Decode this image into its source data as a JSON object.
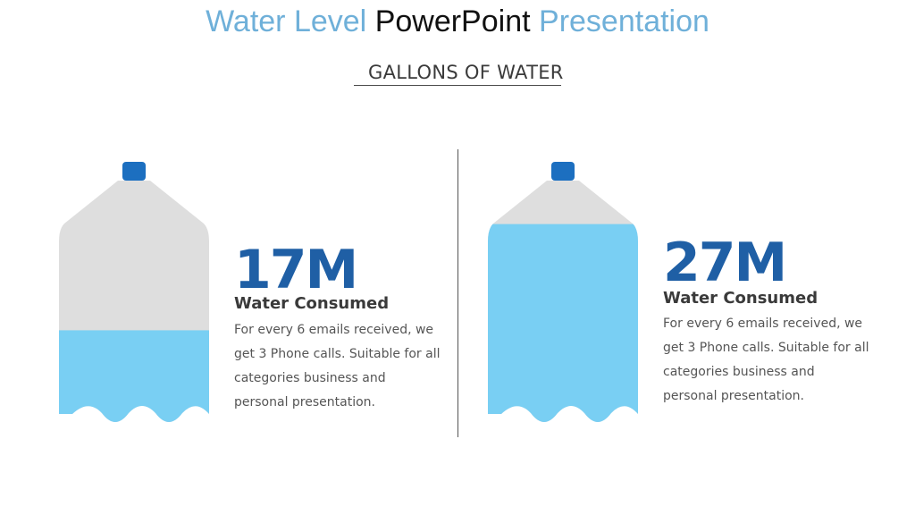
{
  "title": {
    "part1": "Water Level",
    "part2": "PowerPoint",
    "part3": "Presentation"
  },
  "subtitle": "GALLONS OF WATER",
  "colors": {
    "title_blue": "#6fb0d9",
    "stat_blue": "#1f5fa5",
    "water": "#79cff3",
    "bottle_empty": "#dedede",
    "cap": "#1c6fc0"
  },
  "items": [
    {
      "value": "17M",
      "label": "Water Consumed",
      "description": "For every 6 emails received, we get 3 Phone calls. Suitable for all categories business and personal presentation.",
      "fill_level": 0.38
    },
    {
      "value": "27M",
      "label": "Water Consumed",
      "description": "For every 6 emails received, we get 3 Phone calls. Suitable for all categories business and personal presentation.",
      "fill_level": 0.82
    }
  ]
}
